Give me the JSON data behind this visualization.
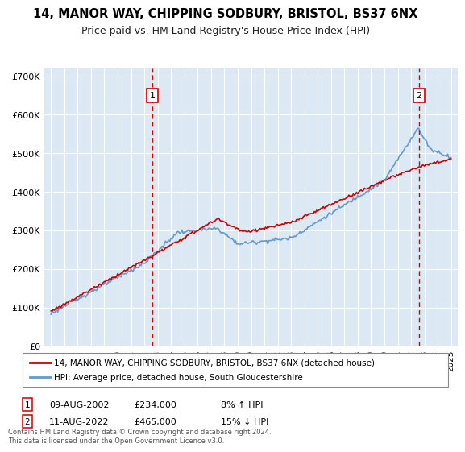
{
  "title": "14, MANOR WAY, CHIPPING SODBURY, BRISTOL, BS37 6NX",
  "subtitle": "Price paid vs. HM Land Registry's House Price Index (HPI)",
  "ylabel_ticks": [
    "£0",
    "£100K",
    "£200K",
    "£300K",
    "£400K",
    "£500K",
    "£600K",
    "£700K"
  ],
  "ytick_values": [
    0,
    100000,
    200000,
    300000,
    400000,
    500000,
    600000,
    700000
  ],
  "ylim": [
    0,
    720000
  ],
  "xlim_start": 1994.5,
  "xlim_end": 2025.5,
  "sale1_date": 2002.6,
  "sale1_price": 234000,
  "sale1_label": "1",
  "sale2_date": 2022.6,
  "sale2_price": 465000,
  "sale2_label": "2",
  "legend_line1": "14, MANOR WAY, CHIPPING SODBURY, BRISTOL, BS37 6NX (detached house)",
  "legend_line2": "HPI: Average price, detached house, South Gloucestershire",
  "footer": "Contains HM Land Registry data © Crown copyright and database right 2024.\nThis data is licensed under the Open Government Licence v3.0.",
  "bg_color": "#dce9f5",
  "line_color_price": "#cc0000",
  "line_color_hpi": "#6699cc",
  "grid_color": "#ffffff",
  "xticks": [
    1995,
    1996,
    1997,
    1998,
    1999,
    2000,
    2001,
    2002,
    2003,
    2004,
    2005,
    2006,
    2007,
    2008,
    2009,
    2010,
    2011,
    2012,
    2013,
    2014,
    2015,
    2016,
    2017,
    2018,
    2019,
    2020,
    2021,
    2022,
    2023,
    2024,
    2025
  ]
}
